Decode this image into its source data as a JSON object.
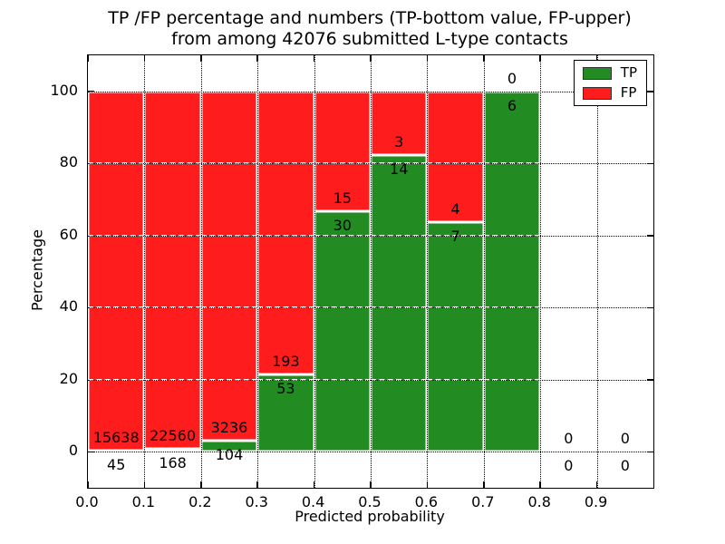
{
  "chart_data": {
    "type": "bar",
    "stacked": true,
    "title_line1": "TP /FP percentage and numbers (TP-bottom value, FP-upper)",
    "title_line2": "from among 42076 submitted L-type contacts",
    "total_submitted": 42076,
    "xlabel": "Predicted probability",
    "ylabel": "Percentage",
    "xlim": [
      0.0,
      1.0
    ],
    "ylim": [
      -10,
      110
    ],
    "bin_width": 0.1,
    "grid": true,
    "legend_position": "upper right",
    "categories": [
      "0.0-0.1",
      "0.1-0.2",
      "0.2-0.3",
      "0.3-0.4",
      "0.4-0.5",
      "0.5-0.6",
      "0.6-0.7",
      "0.7-0.8",
      "0.8-0.9",
      "0.9-1.0"
    ],
    "xtick_labels": [
      "0.0",
      "0.1",
      "0.2",
      "0.3",
      "0.4",
      "0.5",
      "0.6",
      "0.7",
      "0.8",
      "0.9"
    ],
    "ytick_values": [
      0,
      20,
      40,
      60,
      80,
      100
    ],
    "series": [
      {
        "name": "TP",
        "color": "#228b22",
        "counts": [
          45,
          168,
          104,
          53,
          30,
          14,
          7,
          6,
          0,
          0
        ]
      },
      {
        "name": "FP",
        "color": "#ff1c1c",
        "counts": [
          15638,
          22560,
          3236,
          193,
          15,
          3,
          4,
          0,
          0,
          0
        ]
      }
    ]
  }
}
